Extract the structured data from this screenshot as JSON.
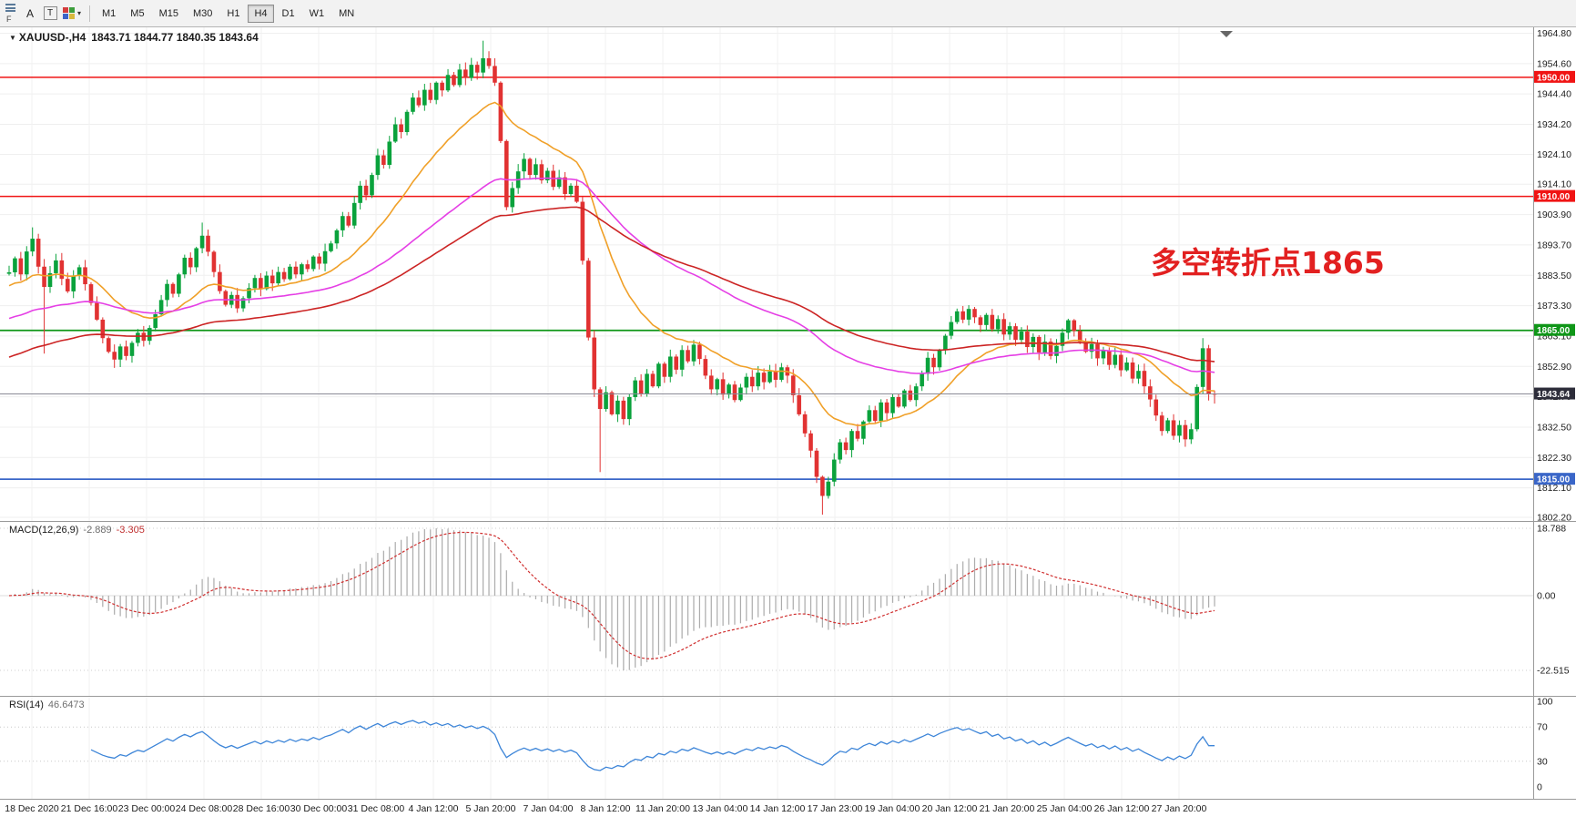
{
  "toolbar": {
    "a_label": "A",
    "t_label": "T",
    "f_label": "F",
    "timeframes": [
      "M1",
      "M5",
      "M15",
      "M30",
      "H1",
      "H4",
      "D1",
      "W1",
      "MN"
    ],
    "active_timeframe": "H4",
    "icons": [
      "menu-icon",
      "palette-icon",
      "dropdown-caret-icon"
    ]
  },
  "chart_title": {
    "symbol": "XAUUSD-,H4",
    "ohlc": "1843.71 1844.77 1840.35 1843.64"
  },
  "annotation": {
    "text": "多空转折点1865",
    "color": "#e22020"
  },
  "macd": {
    "name": "MACD(12,26,9)",
    "value_main": "-2.889",
    "value_signal": "-3.305",
    "ticks": [
      "18.788",
      "0.00",
      "-22.515"
    ]
  },
  "rsi": {
    "name": "RSI(14)",
    "value": "46.6473",
    "ticks": [
      "100",
      "70",
      "30",
      "0"
    ],
    "tick_values": [
      100,
      70,
      30,
      0
    ]
  },
  "chart_data": {
    "type": "candlestick",
    "symbol": "XAUUSD-",
    "timeframe": "H4",
    "title": "XAUUSD-,H4 1843.71 1844.77 1840.35 1843.64",
    "current_bar": {
      "open": 1843.71,
      "high": 1844.77,
      "low": 1840.35,
      "close": 1843.64
    },
    "y_axis": {
      "min": 1802.2,
      "max": 1964.8,
      "tick_values": [
        1964.8,
        1954.6,
        1944.4,
        1934.2,
        1924.1,
        1914.1,
        1903.9,
        1893.7,
        1883.5,
        1873.3,
        1863.1,
        1852.9,
        1842.7,
        1832.5,
        1822.3,
        1812.1,
        1802.2
      ],
      "tick_labels": [
        "1964.80",
        "1954.60",
        "1944.40",
        "1934.20",
        "1924.10",
        "1914.10",
        "1903.90",
        "1893.70",
        "1883.50",
        "1873.30",
        "1863.10",
        "1852.90",
        "1842.70",
        "1832.50",
        "1822.30",
        "1812.10",
        "1802.20"
      ]
    },
    "x_labels": [
      "18 Dec 2020",
      "21 Dec 16:00",
      "23 Dec 00:00",
      "24 Dec 08:00",
      "28 Dec 16:00",
      "30 Dec 00:00",
      "31 Dec 08:00",
      "4 Jan 12:00",
      "5 Jan 20:00",
      "7 Jan 04:00",
      "8 Jan 12:00",
      "11 Jan 20:00",
      "13 Jan 04:00",
      "14 Jan 12:00",
      "17 Jan 23:00",
      "19 Jan 04:00",
      "20 Jan 12:00",
      "21 Jan 20:00",
      "25 Jan 04:00",
      "26 Jan 12:00",
      "27 Jan 20:00"
    ],
    "closes": [
      1884.5,
      1889.2,
      1883.8,
      1891.5,
      1895.8,
      1886.4,
      1879.6,
      1884.2,
      1888.5,
      1882.3,
      1878.1,
      1883.4,
      1886.2,
      1880.5,
      1874.2,
      1868.6,
      1862.4,
      1857.8,
      1855.2,
      1859.6,
      1856.4,
      1860.8,
      1864.2,
      1861.5,
      1865.8,
      1870.4,
      1875.2,
      1880.6,
      1877.3,
      1883.8,
      1889.4,
      1886.2,
      1892.6,
      1896.8,
      1891.4,
      1884.6,
      1878.2,
      1873.6,
      1876.9,
      1872.4,
      1875.8,
      1879.2,
      1882.6,
      1878.9,
      1883.4,
      1880.8,
      1884.6,
      1882.2,
      1886.4,
      1883.8,
      1887.2,
      1885.6,
      1889.8,
      1887.4,
      1891.6,
      1894.2,
      1898.6,
      1903.4,
      1900.2,
      1907.8,
      1913.6,
      1910.4,
      1917.2,
      1923.8,
      1920.6,
      1928.4,
      1934.2,
      1931.6,
      1938.4,
      1943.2,
      1940.6,
      1945.8,
      1942.4,
      1948.2,
      1945.6,
      1950.8,
      1947.4,
      1952.6,
      1949.8,
      1954.2,
      1951.6,
      1956.4,
      1953.8,
      1948.2,
      1928.6,
      1906.4,
      1912.8,
      1918.4,
      1922.6,
      1917.2,
      1920.8,
      1915.4,
      1918.6,
      1913.2,
      1916.4,
      1910.8,
      1913.6,
      1908.2,
      1888.4,
      1862.6,
      1845.2,
      1838.6,
      1844.2,
      1836.8,
      1841.4,
      1835.2,
      1842.6,
      1848.2,
      1843.6,
      1850.4,
      1846.2,
      1853.8,
      1849.4,
      1856.2,
      1851.8,
      1858.4,
      1854.6,
      1860.2,
      1855.4,
      1849.8,
      1845.2,
      1848.6,
      1843.4,
      1846.8,
      1841.6,
      1845.8,
      1849.4,
      1846.2,
      1850.8,
      1847.6,
      1851.2,
      1848.4,
      1852.6,
      1849.8,
      1843.2,
      1836.8,
      1830.4,
      1824.6,
      1815.8,
      1809.4,
      1814.2,
      1821.6,
      1827.4,
      1824.8,
      1831.2,
      1828.6,
      1834.4,
      1838.2,
      1834.6,
      1840.8,
      1837.2,
      1842.6,
      1839.4,
      1844.8,
      1841.6,
      1846.2,
      1850.4,
      1855.8,
      1852.6,
      1858.4,
      1863.2,
      1867.8,
      1871.4,
      1868.6,
      1872.2,
      1869.4,
      1866.8,
      1870.2,
      1865.4,
      1868.8,
      1863.6,
      1866.4,
      1861.8,
      1864.6,
      1859.4,
      1862.8,
      1857.6,
      1861.2,
      1856.4,
      1859.8,
      1864.2,
      1868.4,
      1864.8,
      1861.2,
      1857.8,
      1860.4,
      1855.6,
      1858.2,
      1853.4,
      1856.8,
      1851.6,
      1854.2,
      1848.8,
      1851.4,
      1846.2,
      1841.8,
      1836.4,
      1831.2,
      1834.8,
      1829.6,
      1833.2,
      1828.4,
      1831.8,
      1846.0,
      1859.0,
      1843.7,
      1843.64
    ],
    "wick_overrides": [
      {
        "i": 4,
        "high": 1899.6
      },
      {
        "i": 6,
        "low": 1857.2
      },
      {
        "i": 18,
        "low": 1852.4
      },
      {
        "i": 33,
        "high": 1901.2
      },
      {
        "i": 81,
        "high": 1962.3
      },
      {
        "i": 101,
        "low": 1817.4
      },
      {
        "i": 139,
        "low": 1803.1
      },
      {
        "i": 204,
        "high": 1862.4
      },
      {
        "i": 206,
        "high": 1844.8,
        "low": 1840.4
      }
    ],
    "levels": [
      {
        "price": 1950.0,
        "label": "1950.00",
        "color": "#f01414",
        "width": 1.6
      },
      {
        "price": 1910.0,
        "label": "1910.00",
        "color": "#f01414",
        "width": 1.6
      },
      {
        "price": 1865.0,
        "label": "1865.00",
        "color": "#0f9618",
        "width": 1.8
      },
      {
        "price": 1815.0,
        "label": "1815.00",
        "color": "#3a66c8",
        "width": 1.8
      }
    ],
    "current_price": {
      "price": 1843.64,
      "label": "1843.64",
      "bg": "#2d2d3a",
      "line_color": "#8a8a96"
    },
    "candle_colors": {
      "up": "#0aa23c",
      "down": "#e13232"
    },
    "moving_averages": [
      {
        "name": "ma-fast",
        "color": "#f0a028",
        "alpha": 0.095,
        "seed": 1880
      },
      {
        "name": "ma-mid",
        "color": "#e53fe5",
        "alpha": 0.033,
        "seed": 1869
      },
      {
        "name": "ma-slow",
        "color": "#cc2424",
        "alpha": 0.022,
        "seed": 1856
      }
    ],
    "macd_panel": {
      "label": "MACD(12,26,9)",
      "main": -2.889,
      "signal": -3.305,
      "scale_max": 18.788,
      "scale_min": -22.515,
      "histogram_color": "#ababab",
      "signal_color": "#d03030"
    },
    "rsi_panel": {
      "label": "RSI(14)",
      "value": 46.6473,
      "period": 14,
      "levels": [
        70,
        30
      ],
      "line_color": "#3d85d8"
    }
  }
}
